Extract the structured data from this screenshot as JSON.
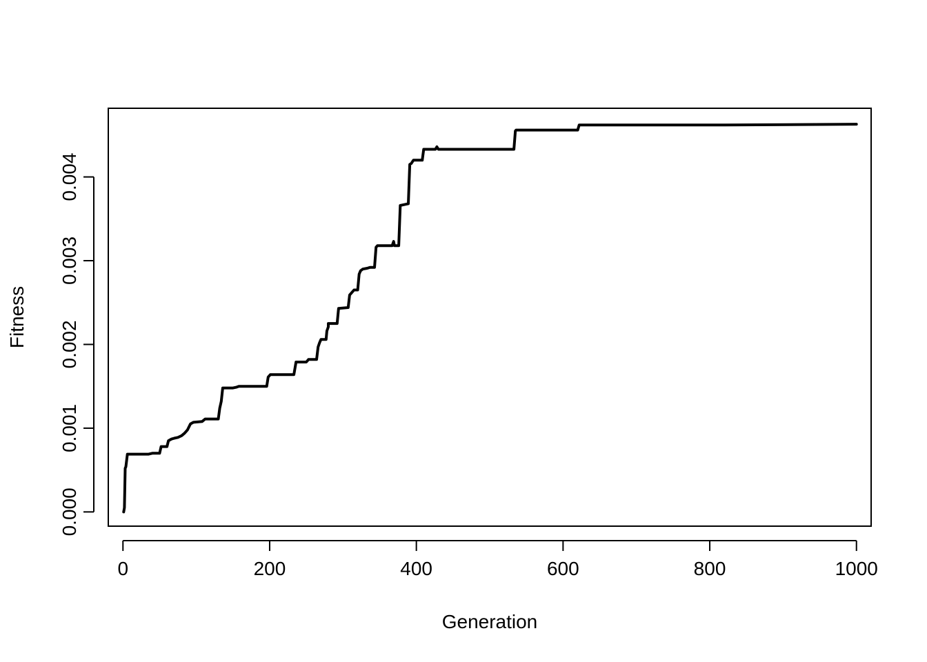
{
  "chart_data": {
    "type": "line",
    "title": "",
    "xlabel": "Generation",
    "ylabel": "Fitness",
    "xlim": [
      -20,
      1020
    ],
    "ylim": [
      -0.00017,
      0.00482
    ],
    "xticks": [
      0,
      200,
      400,
      600,
      800,
      1000
    ],
    "xtick_labels": [
      "0",
      "200",
      "400",
      "600",
      "800",
      "1000"
    ],
    "yticks": [
      0,
      0.001,
      0.002,
      0.003,
      0.004
    ],
    "ytick_labels": [
      "0.000",
      "0.001",
      "0.002",
      "0.003",
      "0.004"
    ],
    "grid": false,
    "legend": "none",
    "line_color": "#000000",
    "series": [
      {
        "x": [
          1,
          2,
          3,
          4,
          6,
          35,
          40,
          50,
          52,
          60,
          62,
          66,
          70,
          75,
          80,
          84,
          88,
          92,
          96,
          108,
          112,
          130,
          132,
          134,
          136,
          150,
          155,
          158,
          196,
          198,
          201,
          233,
          236,
          250,
          253,
          264,
          266,
          268,
          270,
          277,
          278,
          280,
          280,
          292,
          294,
          307,
          309,
          312,
          315,
          320,
          322,
          324,
          327,
          333,
          337,
          343,
          345,
          347,
          367,
          369,
          370,
          376,
          378,
          389,
          391,
          393,
          396,
          408,
          410,
          420,
          426,
          428,
          430,
          533,
          535,
          536,
          541,
          620,
          622,
          700,
          820,
          1000
        ],
        "y": [
          0.0,
          5e-05,
          0.00052,
          0.00054,
          0.00069,
          0.00069,
          0.0007,
          0.0007,
          0.00078,
          0.00078,
          0.00085,
          0.00087,
          0.00088,
          0.00089,
          0.00091,
          0.00094,
          0.00098,
          0.00105,
          0.00107,
          0.00108,
          0.00111,
          0.00111,
          0.00124,
          0.00132,
          0.00148,
          0.00148,
          0.00149,
          0.0015,
          0.0015,
          0.00161,
          0.00164,
          0.00164,
          0.00179,
          0.00179,
          0.00182,
          0.00182,
          0.00197,
          0.00202,
          0.00206,
          0.00206,
          0.00216,
          0.00221,
          0.00225,
          0.00225,
          0.00243,
          0.00244,
          0.00259,
          0.00262,
          0.00265,
          0.00265,
          0.00284,
          0.00288,
          0.0029,
          0.00291,
          0.00292,
          0.00292,
          0.00316,
          0.00318,
          0.00318,
          0.00323,
          0.00318,
          0.00318,
          0.00366,
          0.00368,
          0.00415,
          0.00416,
          0.0042,
          0.0042,
          0.00433,
          0.00433,
          0.00433,
          0.00436,
          0.00433,
          0.00433,
          0.00455,
          0.00456,
          0.00456,
          0.00456,
          0.00462,
          0.00462,
          0.00462,
          0.00463
        ]
      }
    ]
  }
}
